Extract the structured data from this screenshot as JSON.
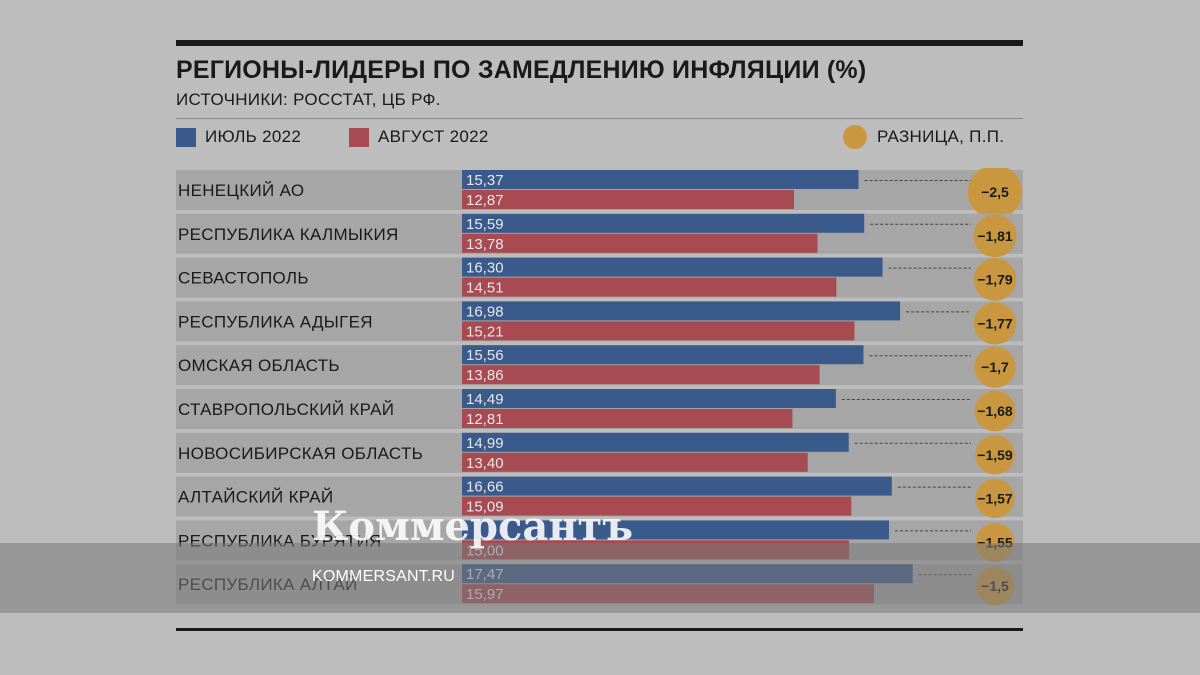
{
  "chart_data": {
    "type": "bar",
    "title": "РЕГИОНЫ-ЛИДЕРЫ ПО ЗАМЕДЛЕНИЮ ИНФЛЯЦИИ (%)",
    "subtitle": "ИСТОЧНИКИ: РОССТАТ, ЦБ РФ.",
    "orientation": "horizontal",
    "categories": [
      "НЕНЕЦКИЙ АО",
      "РЕСПУБЛИКА КАЛМЫКИЯ",
      "СЕВАСТОПОЛЬ",
      "РЕСПУБЛИКА АДЫГЕЯ",
      "ОМСКАЯ ОБЛАСТЬ",
      "СТАВРОПОЛЬСКИЙ КРАЙ",
      "НОВОСИБИРСКАЯ ОБЛАСТЬ",
      "АЛТАЙСКИЙ КРАЙ",
      "РЕСПУБЛИКА БУРЯТИЯ",
      "РЕСПУБЛИКА АЛТАЙ"
    ],
    "series": [
      {
        "name": "ИЮЛЬ 2022",
        "color": "#3a5a8c",
        "values": [
          15.37,
          15.59,
          16.3,
          16.98,
          15.56,
          14.49,
          14.99,
          16.66,
          null,
          17.47
        ],
        "labels": [
          "15,37",
          "15,59",
          "16,30",
          "16,98",
          "15,56",
          "14,49",
          "14,99",
          "16,66",
          "",
          "17,47"
        ]
      },
      {
        "name": "АВГУСТ 2022",
        "color": "#a84a52",
        "values": [
          12.87,
          13.78,
          14.51,
          15.21,
          13.86,
          12.81,
          13.4,
          15.09,
          15.0,
          15.97
        ],
        "labels": [
          "12,87",
          "13,78",
          "14,51",
          "15,21",
          "13,86",
          "12,81",
          "13,40",
          "15,09",
          "15,00",
          "15,97"
        ]
      },
      {
        "name": "РАЗНИЦА, П.П.",
        "color": "#c9973f",
        "values": [
          -2.5,
          -1.81,
          -1.79,
          -1.77,
          -1.7,
          -1.68,
          -1.59,
          -1.57,
          -1.55,
          -1.5
        ],
        "labels": [
          "−2,5",
          "−1,81",
          "−1,79",
          "−1,77",
          "−1,7",
          "−1,68",
          "−1,59",
          "−1,57",
          "−1,55",
          "−1,5"
        ]
      }
    ],
    "xlim": [
      0,
      20
    ],
    "legend_position": "top",
    "grid": false
  },
  "watermark": {
    "logo": "Коммерсантъ",
    "url": "KOMMERSANT.RU"
  }
}
